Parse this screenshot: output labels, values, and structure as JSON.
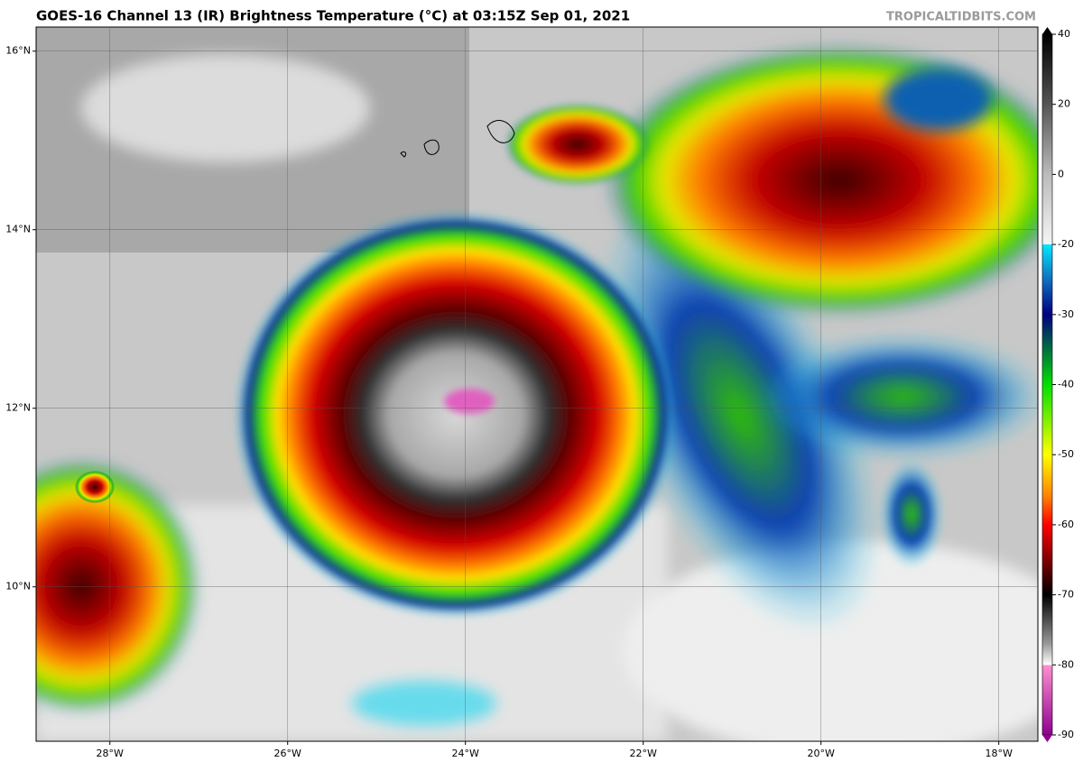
{
  "header": {
    "title": "GOES-16 Channel 13 (IR) Brightness Temperature (°C) at 03:15Z Sep 01, 2021",
    "credit": "TROPICALTIDBITS.COM"
  },
  "map": {
    "xlim": [
      -28.83,
      -17.56
    ],
    "ylim": [
      8.27,
      16.27
    ],
    "xticks": [
      {
        "value": -28,
        "label": "28°W"
      },
      {
        "value": -26,
        "label": "26°W"
      },
      {
        "value": -24,
        "label": "24°W"
      },
      {
        "value": -22,
        "label": "22°W"
      },
      {
        "value": -20,
        "label": "20°W"
      },
      {
        "value": -18,
        "label": "18°W"
      }
    ],
    "yticks": [
      {
        "value": 16,
        "label": "16°N"
      },
      {
        "value": 14,
        "label": "14°N"
      },
      {
        "value": 12,
        "label": "12°N"
      },
      {
        "value": 10,
        "label": "10°N"
      }
    ],
    "grid": true
  },
  "colorbar": {
    "ticks": [
      40,
      20,
      0,
      -20,
      -30,
      -40,
      -50,
      -60,
      -70,
      -80,
      -90
    ]
  }
}
